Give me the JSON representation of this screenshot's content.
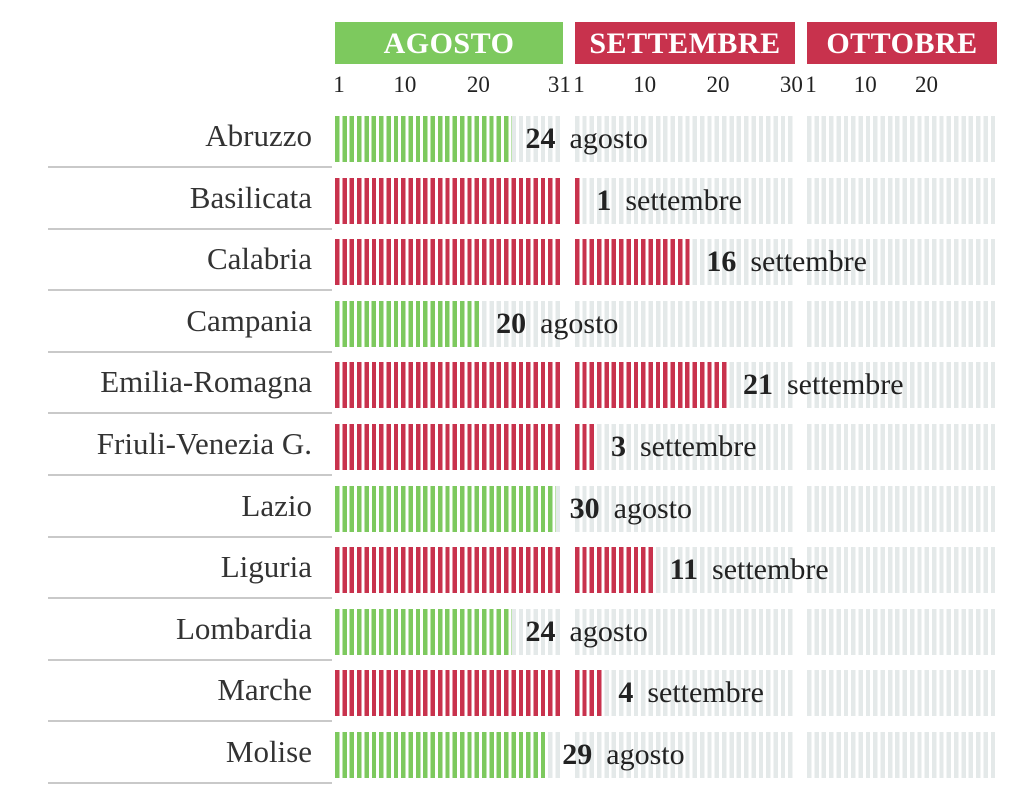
{
  "chart_data": {
    "type": "bar",
    "months": [
      {
        "name": "AGOSTO",
        "days": 31,
        "ticks": [
          1,
          10,
          20,
          31
        ],
        "color": "#7dc95e"
      },
      {
        "name": "SETTEMBRE",
        "days": 30,
        "ticks": [
          1,
          10,
          20,
          30
        ],
        "color": "#c8324d"
      },
      {
        "name": "OTTOBRE",
        "days": 31,
        "ticks": [
          1,
          10,
          20
        ],
        "color": "#c8324d"
      }
    ],
    "colors": {
      "agosto": "#7dc95e",
      "settembre": "#c8324d",
      "background": "#e4e9e9",
      "stripe": "#ffffff"
    },
    "rows": [
      {
        "region": "Abruzzo",
        "day": 24,
        "month_label": "agosto",
        "month_index": 0
      },
      {
        "region": "Basilicata",
        "day": 1,
        "month_label": "settembre",
        "month_index": 1
      },
      {
        "region": "Calabria",
        "day": 16,
        "month_label": "settembre",
        "month_index": 1
      },
      {
        "region": "Campania",
        "day": 20,
        "month_label": "agosto",
        "month_index": 0
      },
      {
        "region": "Emilia-Romagna",
        "day": 21,
        "month_label": "settembre",
        "month_index": 1
      },
      {
        "region": "Friuli-Venezia G.",
        "day": 3,
        "month_label": "settembre",
        "month_index": 1
      },
      {
        "region": "Lazio",
        "day": 30,
        "month_label": "agosto",
        "month_index": 0
      },
      {
        "region": "Liguria",
        "day": 11,
        "month_label": "settembre",
        "month_index": 1
      },
      {
        "region": "Lombardia",
        "day": 24,
        "month_label": "agosto",
        "month_index": 0
      },
      {
        "region": "Marche",
        "day": 4,
        "month_label": "settembre",
        "month_index": 1
      },
      {
        "region": "Molise",
        "day": 29,
        "month_label": "agosto",
        "month_index": 0
      }
    ]
  }
}
